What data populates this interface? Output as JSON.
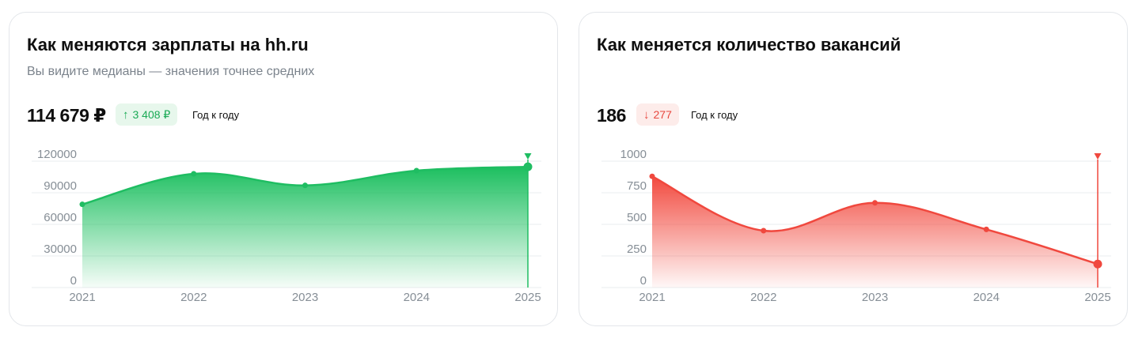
{
  "salary": {
    "title": "Как меняются зарплаты на hh.ru",
    "subtitle": "Вы видите медианы — значения точнее средних",
    "value": "114 679 ₽",
    "change_arrow": "↑",
    "change": "3 408 ₽",
    "period": "Год к году"
  },
  "vacancies": {
    "title": "Как меняется количество вакансий",
    "value": "186",
    "change_arrow": "↓",
    "change": "277",
    "period": "Год к году"
  },
  "colors": {
    "salary_line": "#1fbd62",
    "vacancies_line": "#f0483e"
  },
  "chart_data": [
    {
      "type": "area",
      "x": [
        "2021",
        "2022",
        "2023",
        "2024",
        "2025"
      ],
      "y_ticks": [
        "0",
        "30000",
        "60000",
        "90000",
        "120000"
      ],
      "ylim": [
        0,
        120000
      ],
      "series": [
        {
          "values": [
            79000,
            108000,
            97000,
            111000,
            114679
          ]
        }
      ],
      "highlight": "2025",
      "grid": true
    },
    {
      "type": "area",
      "x": [
        "2021",
        "2022",
        "2023",
        "2024",
        "2025"
      ],
      "y_ticks": [
        "0",
        "250",
        "500",
        "750",
        "1000"
      ],
      "ylim": [
        0,
        1000
      ],
      "series": [
        {
          "values": [
            880,
            450,
            670,
            460,
            186
          ]
        }
      ],
      "highlight": "2025",
      "grid": true
    }
  ]
}
